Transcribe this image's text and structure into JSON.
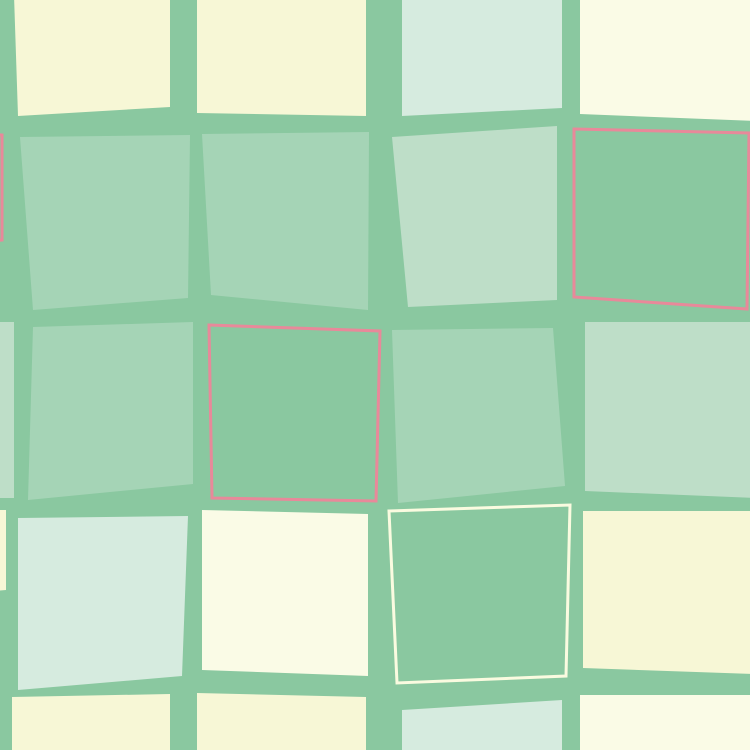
{
  "palette": {
    "background": "#8AC8A0",
    "cream": "#F7F7D6",
    "light_cream": "#FAFBE6",
    "pale_green": "#D6EBDF",
    "light_green": "#BEDEC8",
    "mid_green": "#A5D4B6",
    "pink_outline": "#E8899A",
    "cream_outline": "#FAFBE0"
  },
  "tiles": [
    {
      "fill": "cream"
    },
    {
      "fill": "cream"
    },
    {
      "fill": "pale_green"
    },
    {
      "fill": "light_cream"
    },
    {
      "fill": "background",
      "outline": "pink_outline"
    },
    {
      "fill": "mid_green"
    },
    {
      "fill": "mid_green"
    },
    {
      "fill": "light_green"
    },
    {
      "fill": "background",
      "outline": "pink_outline"
    },
    {
      "fill": "light_green"
    },
    {
      "fill": "mid_green"
    },
    {
      "fill": "background",
      "outline": "pink_outline"
    },
    {
      "fill": "mid_green"
    },
    {
      "fill": "light_green"
    },
    {
      "fill": "cream"
    },
    {
      "fill": "pale_green"
    },
    {
      "fill": "light_cream"
    },
    {
      "fill": "background",
      "outline": "cream_outline"
    },
    {
      "fill": "cream"
    },
    {
      "fill": "cream"
    },
    {
      "fill": "cream"
    },
    {
      "fill": "pale_green"
    },
    {
      "fill": "light_cream"
    }
  ]
}
